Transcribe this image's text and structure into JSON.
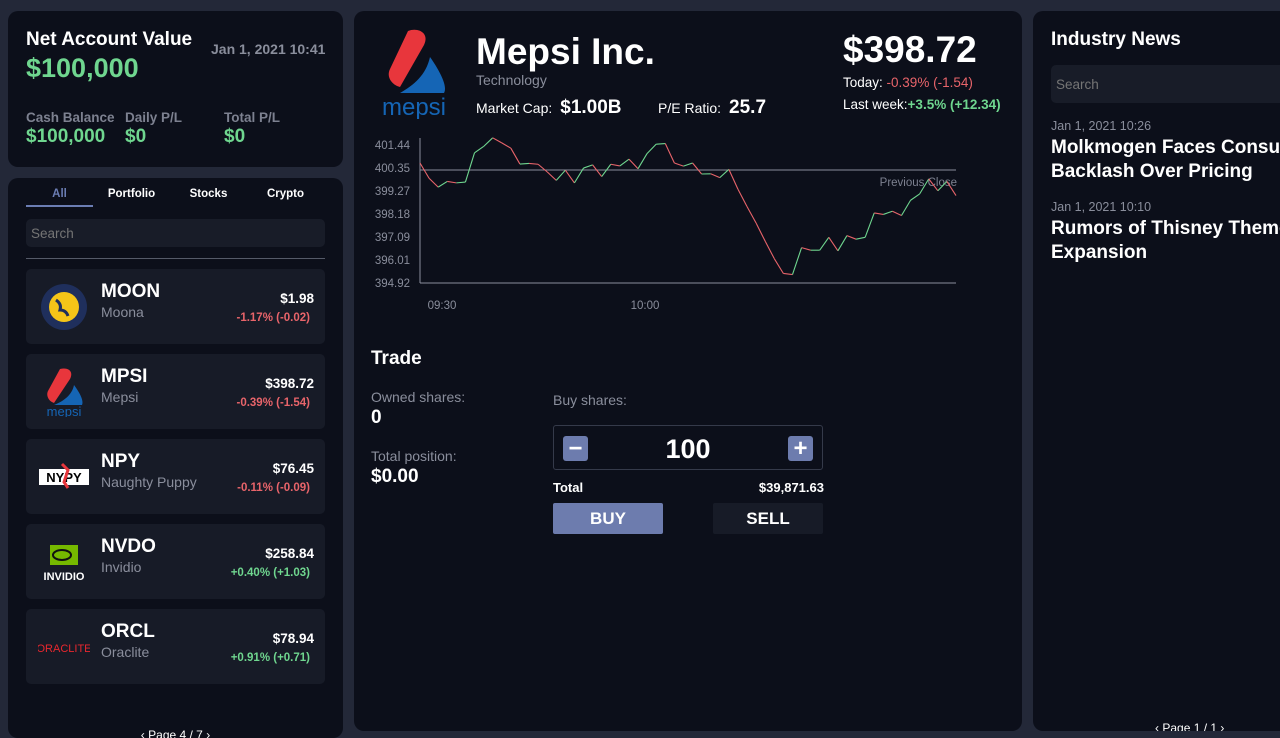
{
  "account": {
    "title": "Net Account Value",
    "datetime": "Jan 1, 2021  10:41",
    "net_value": "$100,000",
    "cash_label": "Cash Balance",
    "cash": "$100,000",
    "daily_label": "Daily P/L",
    "daily": "$0",
    "total_label": "Total P/L",
    "total": "$0"
  },
  "list": {
    "tabs": [
      "All",
      "Portfolio",
      "Stocks",
      "Crypto"
    ],
    "active_tab": "All",
    "search_placeholder": "Search",
    "items": [
      {
        "symbol": "MOON",
        "name": "Moona",
        "price": "$1.98",
        "change": "-1.17% (-0.02)",
        "dir": "down",
        "logo": "moon-logo"
      },
      {
        "symbol": "MPSI",
        "name": "Mepsi",
        "price": "$398.72",
        "change": "-0.39% (-1.54)",
        "dir": "down",
        "logo": "mepsi-logo"
      },
      {
        "symbol": "NPY",
        "name": "Naughty Puppy",
        "price": "$76.45",
        "change": "-0.11% (-0.09)",
        "dir": "down",
        "logo": "npy-logo"
      },
      {
        "symbol": "NVDO",
        "name": "Invidio",
        "price": "$258.84",
        "change": "+0.40% (+1.03)",
        "dir": "up",
        "logo": "invidio-logo"
      },
      {
        "symbol": "ORCL",
        "name": "Oraclite",
        "price": "$78.94",
        "change": "+0.91% (+0.71)",
        "dir": "up",
        "logo": "oraclite-logo"
      }
    ],
    "pager": "Page 4 / 7"
  },
  "stock": {
    "name": "Mepsi Inc.",
    "sector": "Technology",
    "logo_text": "mepsi",
    "market_cap_label": "Market Cap:",
    "market_cap": "$1.00B",
    "pe_label": "P/E Ratio:",
    "pe": "25.7",
    "price": "$398.72",
    "today_label": "Today:",
    "today": "-0.39% (-1.54)",
    "week_label": "Last week:",
    "week": "+3.5% (+12.34)"
  },
  "chart_data": {
    "type": "line",
    "ylim": [
      394.92,
      401.44
    ],
    "yticks": [
      "401.44",
      "400.35",
      "399.27",
      "398.18",
      "397.09",
      "396.01",
      "394.92"
    ],
    "xticks": [
      "09:30",
      "10:00"
    ],
    "reference_line": {
      "label": "Previous Close",
      "value": 400.26
    },
    "colors": {
      "up": "#6fd68f",
      "down": "#e8646a"
    },
    "values": [
      400.59,
      399.87,
      399.45,
      399.72,
      399.65,
      399.69,
      401.07,
      401.37,
      401.78,
      401.54,
      401.29,
      400.54,
      400.57,
      400.53,
      400.17,
      399.77,
      400.25,
      399.65,
      400.35,
      400.5,
      399.95,
      400.53,
      400.45,
      400.77,
      400.32,
      401.04,
      401.48,
      401.51,
      400.59,
      400.44,
      400.59,
      400.07,
      400.08,
      399.9,
      400.29,
      399.35,
      398.53,
      397.75,
      396.89,
      396.07,
      395.37,
      395.32,
      396.59,
      396.47,
      396.47,
      397.08,
      396.44,
      397.16,
      396.99,
      397.08,
      398.23,
      398.16,
      398.31,
      398.11,
      398.83,
      399.13,
      399.84,
      399.28,
      399.72,
      399.05
    ]
  },
  "trade": {
    "title": "Trade",
    "owned_label": "Owned shares:",
    "owned": "0",
    "position_label": "Total position:",
    "position": "$0.00",
    "buy_label": "Buy shares:",
    "quantity": "100",
    "minus": "−",
    "plus": "+",
    "total_label": "Total",
    "total": "$39,871.63",
    "buy": "BUY",
    "sell": "SELL"
  },
  "news": {
    "title": "Industry News",
    "search_placeholder": "Search",
    "items": [
      {
        "date": "Jan 1, 2021 10:26",
        "title": "Molkmogen Faces Consumer Backlash Over Pricing"
      },
      {
        "date": "Jan 1, 2021 10:10",
        "title": "Rumors of Thisney Theme Park Expansion"
      }
    ],
    "pager": "Page 1 / 1"
  }
}
